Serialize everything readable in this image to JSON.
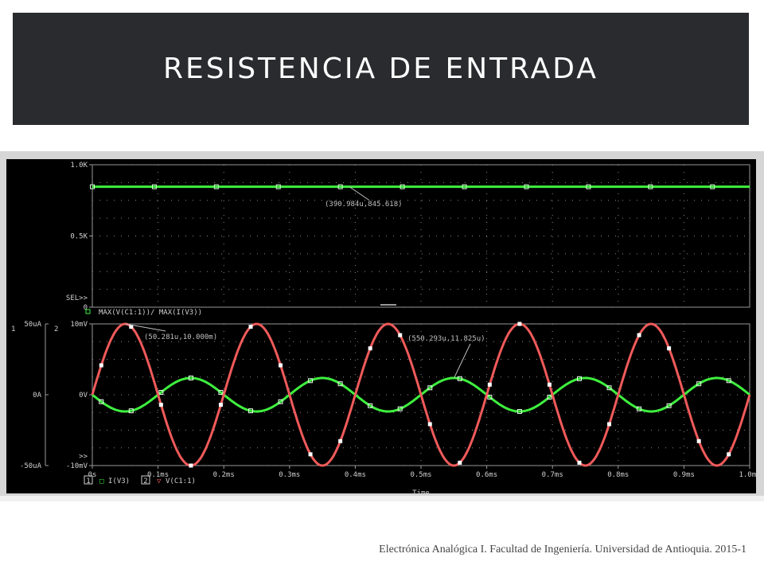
{
  "slide": {
    "title": "RESISTENCIA DE ENTRADA",
    "footer": "Electrónica Analógica I.  Facultad de Ingeniería. Universidad de Antioquia.  2015-1"
  },
  "colors": {
    "slide_title_bg": "#2a2b2f",
    "plot_bg": "#000000",
    "green": "#3ef03e",
    "red": "#f05a5a",
    "grid": "#8a8a8a"
  },
  "chart_data": [
    {
      "type": "line",
      "panel": "top",
      "ylim": [
        0,
        1000
      ],
      "yticks": [
        {
          "v": 1000,
          "label": "1.0K"
        },
        {
          "v": 500,
          "label": "0.5K"
        },
        {
          "v": 0,
          "label": "0"
        }
      ],
      "sel_label": "SEL>>",
      "series": [
        {
          "name": "MAX(V(C1:1))/ MAX(I(V3))",
          "color": "#3ef03e",
          "x": [
            0,
            1
          ],
          "y": [
            845.618,
            845.618
          ]
        }
      ],
      "annotation": {
        "label": "(390.984u,845.618)",
        "x": 0.391,
        "y": 845.618
      }
    },
    {
      "type": "line",
      "panel": "bottom",
      "xlim": [
        0,
        1.0
      ],
      "xticks": [
        "0s",
        "0.1ms",
        "0.2ms",
        "0.3ms",
        "0.4ms",
        "0.5ms",
        "0.6ms",
        "0.7ms",
        "0.8ms",
        "0.9ms",
        "1.0ms"
      ],
      "xlabel": "Time",
      "y1": {
        "axis_id": "1",
        "ylim": [
          -50,
          50
        ],
        "unit": "uA",
        "ticks": [
          "50uA",
          "0A",
          "-50uA"
        ]
      },
      "y2": {
        "axis_id": "2",
        "ylim": [
          -10,
          10
        ],
        "unit": "mV",
        "ticks": [
          "10mV",
          "0V",
          "-10mV"
        ]
      },
      "scroll_label": ">>",
      "series": [
        {
          "name": "I(V3)",
          "axis": "1",
          "color": "#3ef03e",
          "waveform": "sine",
          "amplitude": 11.825,
          "frequency_khz": 5,
          "phase_deg": 180
        },
        {
          "name": "V(C1:1)",
          "axis": "2",
          "color": "#f05a5a",
          "waveform": "sine",
          "amplitude": 10.0,
          "frequency_khz": 5,
          "phase_deg": 0
        }
      ],
      "annotations": [
        {
          "label": "(50.281u,10.000m)",
          "x": 0.0503,
          "y": 10.0
        },
        {
          "label": "(550.293u,11.825u)",
          "x": 0.5503,
          "y": 11.825
        }
      ],
      "legend": [
        {
          "box": "1",
          "symbol": "□",
          "name": "I(V3)"
        },
        {
          "box": "2",
          "symbol": "▽",
          "name": "V(C1:1)"
        }
      ]
    }
  ]
}
